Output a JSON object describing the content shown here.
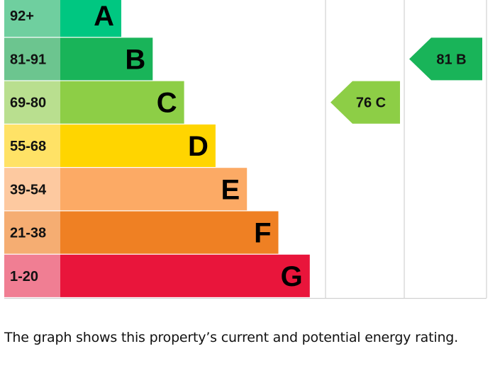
{
  "chart_data": {
    "type": "bar",
    "bands": [
      {
        "range": "92+",
        "letter": "A",
        "color": "#00c781",
        "range_color": "#6fcf9f"
      },
      {
        "range": "81-91",
        "letter": "B",
        "color": "#19b459",
        "range_color": "#6cc58f"
      },
      {
        "range": "69-80",
        "letter": "C",
        "color": "#8dce46",
        "range_color": "#b9df8f"
      },
      {
        "range": "55-68",
        "letter": "D",
        "color": "#ffd500",
        "range_color": "#ffe266"
      },
      {
        "range": "39-54",
        "letter": "E",
        "color": "#fcaa65",
        "range_color": "#fdc9a0"
      },
      {
        "range": "21-38",
        "letter": "F",
        "color": "#ef8023",
        "range_color": "#f5ad72"
      },
      {
        "range": "1-20",
        "letter": "G",
        "color": "#e9153b",
        "range_color": "#f07e93"
      }
    ],
    "current": {
      "value": 76,
      "letter": "C",
      "label": "76 C",
      "color": "#8dce46"
    },
    "potential": {
      "value": 81,
      "letter": "B",
      "label": "81 B",
      "color": "#19b459"
    }
  },
  "caption": "The graph shows this property’s current and potential energy rating."
}
